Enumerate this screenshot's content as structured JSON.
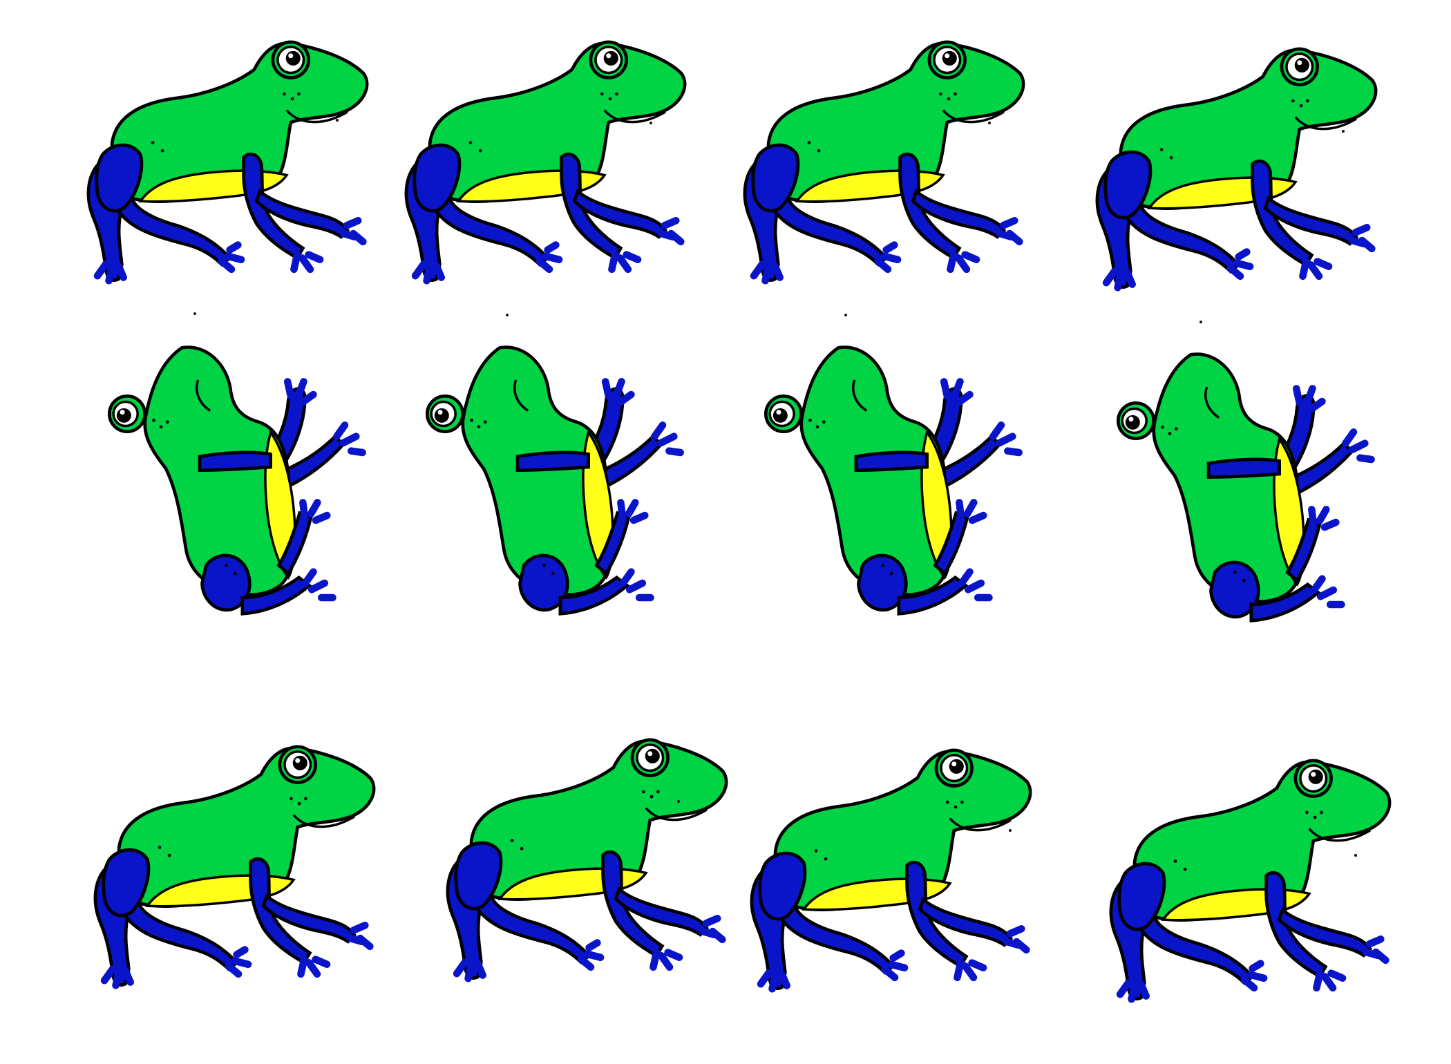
{
  "sprite_sheet": {
    "columns": 4,
    "rows": [
      {
        "pose": "frog-side-standing",
        "frames": [
          {
            "index": 1,
            "icon": "frog-side-icon"
          },
          {
            "index": 2,
            "icon": "frog-side-icon"
          },
          {
            "index": 3,
            "icon": "frog-side-icon"
          },
          {
            "index": 4,
            "icon": "frog-side-icon"
          }
        ]
      },
      {
        "pose": "frog-upright-jumping",
        "frames": [
          {
            "index": 5,
            "icon": "frog-jump-icon"
          },
          {
            "index": 6,
            "icon": "frog-jump-icon"
          },
          {
            "index": 7,
            "icon": "frog-jump-icon"
          },
          {
            "index": 8,
            "icon": "frog-jump-icon"
          }
        ]
      },
      {
        "pose": "frog-side-landing",
        "frames": [
          {
            "index": 9,
            "icon": "frog-side-icon"
          },
          {
            "index": 10,
            "icon": "frog-side-icon"
          },
          {
            "index": 11,
            "icon": "frog-side-icon"
          },
          {
            "index": 12,
            "icon": "frog-side-icon"
          }
        ]
      }
    ],
    "colors": {
      "body": "#00d444",
      "belly": "#ffff1a",
      "limbs": "#0a14c8",
      "outline": "#000000",
      "background": "#ffffff"
    }
  }
}
